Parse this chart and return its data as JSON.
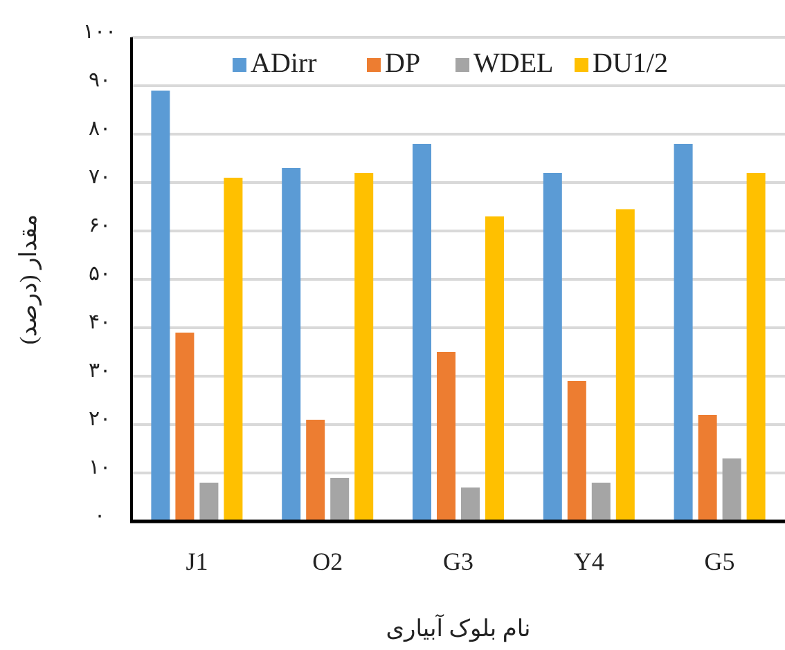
{
  "chart_data": {
    "type": "bar",
    "xlabel": "نام بلوک آبیاری",
    "ylabel": "مقدار (درصد)",
    "categories": [
      "J1",
      "O2",
      "G3",
      "Y4",
      "G5"
    ],
    "series": [
      {
        "name": "ADirr",
        "color": "#5b9bd5",
        "values": [
          89,
          73,
          78,
          72,
          78
        ]
      },
      {
        "name": "DP",
        "color": "#ed7d31",
        "values": [
          39,
          21,
          35,
          29,
          22
        ]
      },
      {
        "name": "WDEL",
        "color": "#a5a5a5",
        "values": [
          8,
          9,
          7,
          8,
          13
        ]
      },
      {
        "name": "DU1/2",
        "color": "#ffc000",
        "values": [
          71,
          72,
          63,
          64.5,
          72
        ]
      }
    ],
    "ylim": [
      0,
      100
    ],
    "yticks": [
      {
        "value": 0,
        "label": "۰"
      },
      {
        "value": 10,
        "label": "۱۰"
      },
      {
        "value": 20,
        "label": "۲۰"
      },
      {
        "value": 30,
        "label": "۳۰"
      },
      {
        "value": 40,
        "label": "۴۰"
      },
      {
        "value": 50,
        "label": "۵۰"
      },
      {
        "value": 60,
        "label": "۶۰"
      },
      {
        "value": 70,
        "label": "۷۰"
      },
      {
        "value": 80,
        "label": "۸۰"
      },
      {
        "value": 90,
        "label": "۹۰"
      },
      {
        "value": 100,
        "label": "۱۰۰"
      }
    ],
    "grid": "y",
    "legend": "top"
  }
}
